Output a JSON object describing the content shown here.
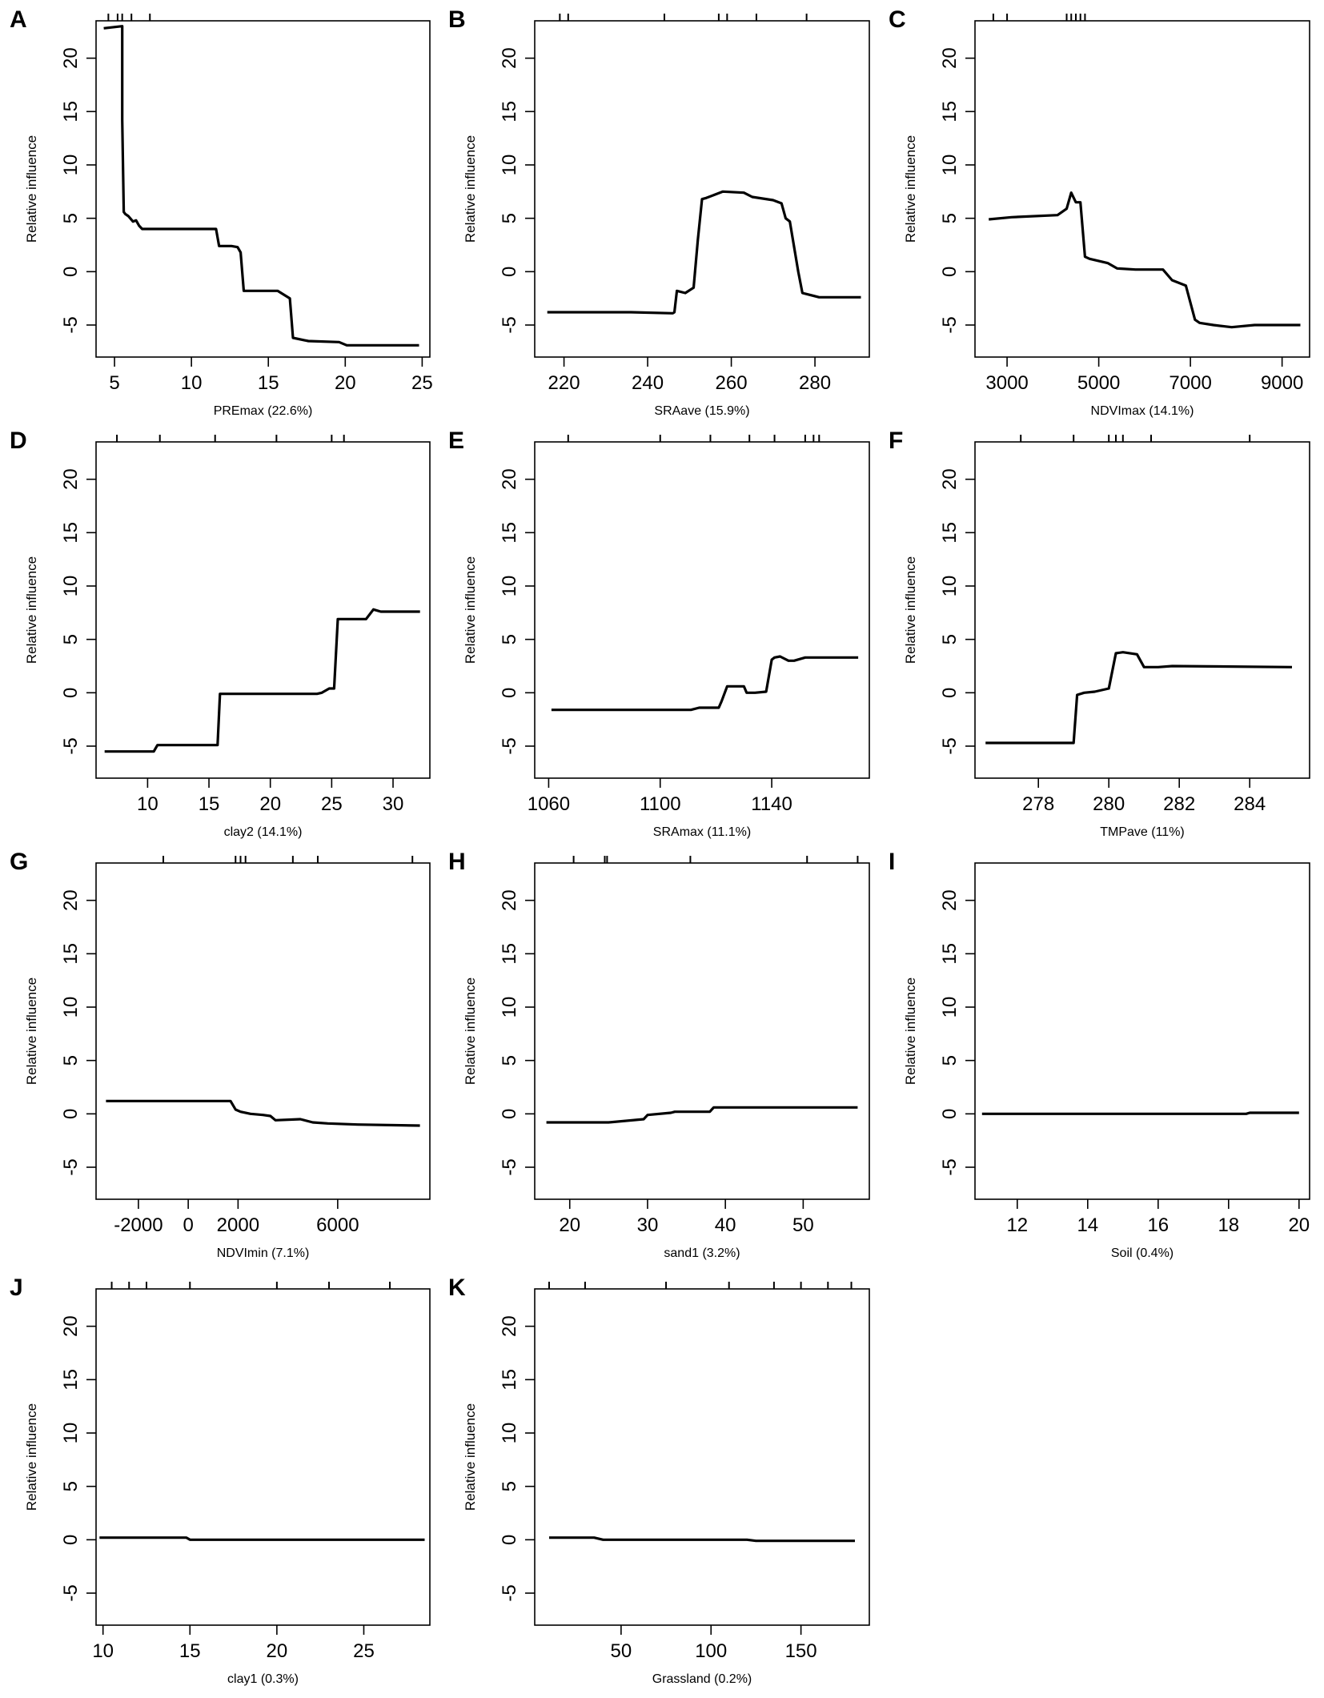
{
  "figure": {
    "background": "#ffffff",
    "line_color": "#000000"
  },
  "chart_data": [
    {
      "panel": "A",
      "type": "line",
      "ylabel": "Relative influence",
      "xlabel": "PREmax  (22.6%)",
      "xlim": [
        3.8,
        25.5
      ],
      "ylim": [
        -8,
        23.5
      ],
      "xticks": [
        5,
        10,
        15,
        20,
        25
      ],
      "yticks": [
        -5,
        0,
        5,
        10,
        15,
        20
      ],
      "rug": [
        4.6,
        5.2,
        5.5,
        6.1,
        7.3
      ],
      "x": [
        4.3,
        5.5,
        5.5,
        5.6,
        5.7,
        5.9,
        6.2,
        6.4,
        6.6,
        6.8,
        11.6,
        11.8,
        12.6,
        13.0,
        13.2,
        13.4,
        15.6,
        16.4,
        16.6,
        17.6,
        19.6,
        20.1,
        24.8
      ],
      "y": [
        22.8,
        23.0,
        14.2,
        5.6,
        5.4,
        5.2,
        4.7,
        4.8,
        4.3,
        4.0,
        4.0,
        2.4,
        2.4,
        2.3,
        1.8,
        -1.8,
        -1.8,
        -2.5,
        -6.2,
        -6.5,
        -6.6,
        -6.9,
        -6.9
      ]
    },
    {
      "panel": "B",
      "type": "line",
      "ylabel": "Relative influence",
      "xlabel": "SRAave  (15.9%)",
      "xlim": [
        213,
        293
      ],
      "ylim": [
        -8,
        23.5
      ],
      "xticks": [
        220,
        240,
        260,
        280
      ],
      "yticks": [
        -5,
        0,
        5,
        10,
        15,
        20
      ],
      "rug": [
        219,
        221,
        244,
        257,
        259,
        266,
        278
      ],
      "x": [
        216,
        236,
        246,
        246.4,
        247,
        249,
        251,
        252,
        253,
        254,
        256,
        258,
        263,
        265,
        270,
        272,
        273,
        274,
        276,
        277,
        278,
        281,
        291
      ],
      "y": [
        -3.8,
        -3.8,
        -3.9,
        -3.8,
        -1.8,
        -2.0,
        -1.5,
        3.0,
        6.8,
        6.9,
        7.2,
        7.5,
        7.4,
        7.0,
        6.7,
        6.4,
        5.0,
        4.7,
        0.0,
        -2.0,
        -2.1,
        -2.4,
        -2.4
      ]
    },
    {
      "panel": "C",
      "type": "line",
      "ylabel": "Relative influence",
      "xlabel": "NDVImax  (14.1%)",
      "xlim": [
        2300,
        9600
      ],
      "ylim": [
        -8,
        23.5
      ],
      "xticks": [
        3000,
        5000,
        7000,
        9000
      ],
      "yticks": [
        -5,
        0,
        5,
        10,
        15,
        20
      ],
      "rug": [
        2700,
        3000,
        4300,
        4400,
        4500,
        4600,
        4700
      ],
      "x": [
        2600,
        3100,
        4100,
        4300,
        4400,
        4500,
        4600,
        4700,
        4800,
        5200,
        5400,
        5800,
        6400,
        6600,
        6900,
        7100,
        7200,
        7500,
        7900,
        8400,
        9400
      ],
      "y": [
        4.9,
        5.1,
        5.3,
        5.9,
        7.4,
        6.5,
        6.5,
        1.4,
        1.2,
        0.8,
        0.3,
        0.2,
        0.2,
        -0.8,
        -1.3,
        -4.5,
        -4.8,
        -5.0,
        -5.2,
        -5.0,
        -5.0
      ]
    },
    {
      "panel": "D",
      "type": "line",
      "ylabel": "Relative influence",
      "xlabel": "clay2  (14.1%)",
      "xlim": [
        5.8,
        33.0
      ],
      "ylim": [
        -8,
        23.5
      ],
      "xticks": [
        10,
        15,
        20,
        25,
        30
      ],
      "yticks": [
        -5,
        0,
        5,
        10,
        15,
        20
      ],
      "rug": [
        7.5,
        11.0,
        15.5,
        20.5,
        25.0,
        26.0
      ],
      "x": [
        6.5,
        10.5,
        10.8,
        15.7,
        15.9,
        16.4,
        23.8,
        24.2,
        24.8,
        25.2,
        25.5,
        25.8,
        27.8,
        28.4,
        29.0,
        32.2
      ],
      "y": [
        -5.5,
        -5.5,
        -4.9,
        -4.9,
        -0.1,
        -0.1,
        -0.1,
        0.0,
        0.4,
        0.4,
        6.9,
        6.9,
        6.9,
        7.8,
        7.6,
        7.6
      ]
    },
    {
      "panel": "E",
      "type": "line",
      "ylabel": "Relative influence",
      "xlabel": "SRAmax  (11.1%)",
      "xlim": [
        1055,
        1175
      ],
      "ylim": [
        -8,
        23.5
      ],
      "xticks": [
        1060,
        1100,
        1140
      ],
      "yticks": [
        -5,
        0,
        5,
        10,
        15,
        20
      ],
      "rug": [
        1067,
        1100,
        1118,
        1132,
        1141,
        1152,
        1155,
        1157
      ],
      "x": [
        1061,
        1111,
        1114,
        1121,
        1122,
        1124,
        1130,
        1131,
        1134,
        1138,
        1140,
        1141,
        1143,
        1146,
        1148,
        1152,
        1155,
        1171
      ],
      "y": [
        -1.6,
        -1.6,
        -1.4,
        -1.4,
        -0.8,
        0.6,
        0.6,
        0.0,
        0.0,
        0.1,
        3.1,
        3.3,
        3.4,
        3.0,
        3.0,
        3.3,
        3.3,
        3.3
      ]
    },
    {
      "panel": "F",
      "type": "line",
      "ylabel": "Relative influence",
      "xlabel": "TMPave  (11%)",
      "xlim": [
        276.2,
        285.7
      ],
      "ylim": [
        -8,
        23.5
      ],
      "xticks": [
        278,
        280,
        282,
        284
      ],
      "yticks": [
        -5,
        0,
        5,
        10,
        15,
        20
      ],
      "rug": [
        277.5,
        279.0,
        280.0,
        280.2,
        280.4,
        281.2,
        284.0
      ],
      "x": [
        276.5,
        279.0,
        279.1,
        279.3,
        279.6,
        280.0,
        280.2,
        280.4,
        280.8,
        281.0,
        281.4,
        281.8,
        285.2
      ],
      "y": [
        -4.7,
        -4.7,
        -0.2,
        0.0,
        0.1,
        0.4,
        3.7,
        3.8,
        3.6,
        2.4,
        2.4,
        2.5,
        2.4
      ]
    },
    {
      "panel": "G",
      "type": "line",
      "ylabel": "Relative influence",
      "xlabel": "NDVImin  (7.1%)",
      "xlim": [
        -3700,
        9700
      ],
      "ylim": [
        -8,
        23.5
      ],
      "xticks": [
        -2000,
        0,
        2000,
        6000
      ],
      "yticks": [
        -5,
        0,
        5,
        10,
        15,
        20
      ],
      "rug": [
        -1000,
        1900,
        2100,
        2300,
        4200,
        5200,
        9000
      ],
      "x": [
        -3300,
        1700,
        1900,
        2100,
        2500,
        3000,
        3300,
        3500,
        4500,
        5000,
        5600,
        6800,
        9300
      ],
      "y": [
        1.2,
        1.2,
        0.4,
        0.2,
        0.0,
        -0.1,
        -0.2,
        -0.6,
        -0.5,
        -0.8,
        -0.9,
        -1.0,
        -1.1
      ]
    },
    {
      "panel": "H",
      "type": "line",
      "ylabel": "Relative influence",
      "xlabel": "sand1  (3.2%)",
      "xlim": [
        15.5,
        58.5
      ],
      "ylim": [
        -8,
        23.5
      ],
      "xticks": [
        20,
        30,
        40,
        50
      ],
      "yticks": [
        -5,
        0,
        5,
        10,
        15,
        20
      ],
      "rug": [
        20.5,
        24.5,
        24.8,
        35.5,
        50.5,
        57.0
      ],
      "x": [
        17,
        25,
        29.5,
        30,
        33,
        33.5,
        38,
        38.5,
        57
      ],
      "y": [
        -0.8,
        -0.8,
        -0.5,
        -0.1,
        0.1,
        0.2,
        0.2,
        0.6,
        0.6
      ]
    },
    {
      "panel": "I",
      "type": "line",
      "ylabel": "Relative influence",
      "xlabel": "Soil  (0.4%)",
      "xlim": [
        10.8,
        20.3
      ],
      "ylim": [
        -8,
        23.5
      ],
      "xticks": [
        12,
        14,
        16,
        18,
        20
      ],
      "yticks": [
        -5,
        0,
        5,
        10,
        15,
        20
      ],
      "rug": [],
      "x": [
        11,
        18.5,
        18.6,
        20
      ],
      "y": [
        0.0,
        0.0,
        0.1,
        0.1
      ]
    },
    {
      "panel": "J",
      "type": "line",
      "ylabel": "Relative influence",
      "xlabel": "clay1  (0.3%)",
      "xlim": [
        9.6,
        28.8
      ],
      "ylim": [
        -8,
        23.5
      ],
      "xticks": [
        10,
        15,
        20,
        25
      ],
      "yticks": [
        -5,
        0,
        5,
        10,
        15,
        20
      ],
      "rug": [
        10.5,
        11.5,
        12.5,
        15.0,
        20.0,
        23.0,
        26.5
      ],
      "x": [
        9.8,
        14.8,
        15.0,
        28.5
      ],
      "y": [
        0.2,
        0.2,
        0.0,
        0.0
      ]
    },
    {
      "panel": "K",
      "type": "line",
      "ylabel": "Relative influence",
      "xlabel": "Grassland  (0.2%)",
      "xlim": [
        2,
        188
      ],
      "ylim": [
        -8,
        23.5
      ],
      "xticks": [
        50,
        100,
        150
      ],
      "yticks": [
        -5,
        0,
        5,
        10,
        15,
        20
      ],
      "rug": [
        10,
        30,
        75,
        110,
        135,
        150,
        165,
        178
      ],
      "x": [
        10,
        35,
        40,
        120,
        125,
        180
      ],
      "y": [
        0.2,
        0.2,
        0.0,
        0.0,
        -0.1,
        -0.1
      ]
    }
  ]
}
